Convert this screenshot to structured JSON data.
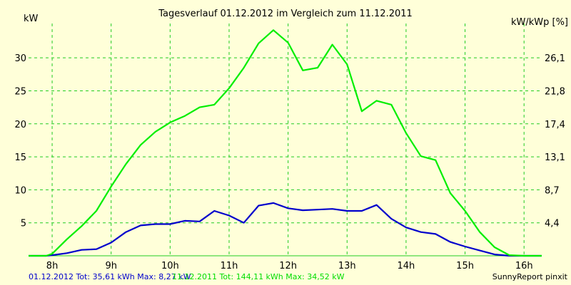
{
  "colors": {
    "background": "#ffffd9",
    "grid": "#22cc22",
    "series_2012": "#0000cc",
    "series_2011": "#00ee00"
  },
  "chart_data": {
    "type": "line",
    "title": "Tagesverlauf 01.12.2012 im Vergleich zum 11.12.2011",
    "ylabel": "kW",
    "y2label": "kW/kWp [%]",
    "xlim": [
      7.6,
      16.3
    ],
    "ylim": [
      0,
      35.2
    ],
    "xticks": [
      8,
      9,
      10,
      11,
      12,
      13,
      14,
      15,
      16
    ],
    "xtick_labels": [
      "8h",
      "9h",
      "10h",
      "11h",
      "12h",
      "13h",
      "14h",
      "15h",
      "16h"
    ],
    "yticks": [
      5,
      10,
      15,
      20,
      25,
      30
    ],
    "yticks_right": [
      "4,4",
      "8,7",
      "13,1",
      "17,4",
      "21,8",
      "26,1"
    ],
    "grid": true,
    "series": [
      {
        "name": "01.12.2012",
        "color": "#0000cc",
        "x": [
          7.6,
          7.9,
          8.0,
          8.25,
          8.5,
          8.75,
          9.0,
          9.25,
          9.5,
          9.75,
          10.0,
          10.25,
          10.5,
          10.75,
          11.0,
          11.25,
          11.5,
          11.75,
          12.0,
          12.25,
          12.5,
          12.75,
          13.0,
          13.25,
          13.5,
          13.75,
          14.0,
          14.25,
          14.5,
          14.75,
          15.0,
          15.25,
          15.5,
          15.75,
          16.0,
          16.3
        ],
        "y": [
          0,
          0,
          0.1,
          0.4,
          0.9,
          1.0,
          2.0,
          3.6,
          4.6,
          4.8,
          4.8,
          5.3,
          5.2,
          6.8,
          6.1,
          5.0,
          7.6,
          8.0,
          7.2,
          6.9,
          7.0,
          7.1,
          6.8,
          6.8,
          7.7,
          5.6,
          4.3,
          3.6,
          3.3,
          2.1,
          1.4,
          0.8,
          0.2,
          0,
          0,
          0
        ]
      },
      {
        "name": "11.12.2011",
        "color": "#00ee00",
        "x": [
          7.6,
          7.9,
          8.0,
          8.25,
          8.5,
          8.75,
          9.0,
          9.25,
          9.5,
          9.75,
          10.0,
          10.25,
          10.5,
          10.75,
          11.0,
          11.25,
          11.5,
          11.75,
          12.0,
          12.25,
          12.5,
          12.75,
          13.0,
          13.25,
          13.5,
          13.75,
          14.0,
          14.25,
          14.5,
          14.75,
          15.0,
          15.25,
          15.5,
          15.75,
          16.0,
          16.3
        ],
        "y": [
          0,
          0,
          0.3,
          2.5,
          4.5,
          6.8,
          10.5,
          13.9,
          16.8,
          18.8,
          20.2,
          21.2,
          22.5,
          22.9,
          25.4,
          28.5,
          32.2,
          34.2,
          32.3,
          28.1,
          28.5,
          32.0,
          29.0,
          21.9,
          23.5,
          22.9,
          18.6,
          15.1,
          14.5,
          9.5,
          6.8,
          3.6,
          1.3,
          0.1,
          0,
          0
        ]
      }
    ]
  },
  "footer": {
    "series_2012_info": "01.12.2012 Tot: 35,61 kWh Max: 8,27 kW",
    "series_2011_info": "11.12.2011 Tot: 144,11 kWh Max: 34,52 kW",
    "credit": "SunnyReport pinxit"
  }
}
